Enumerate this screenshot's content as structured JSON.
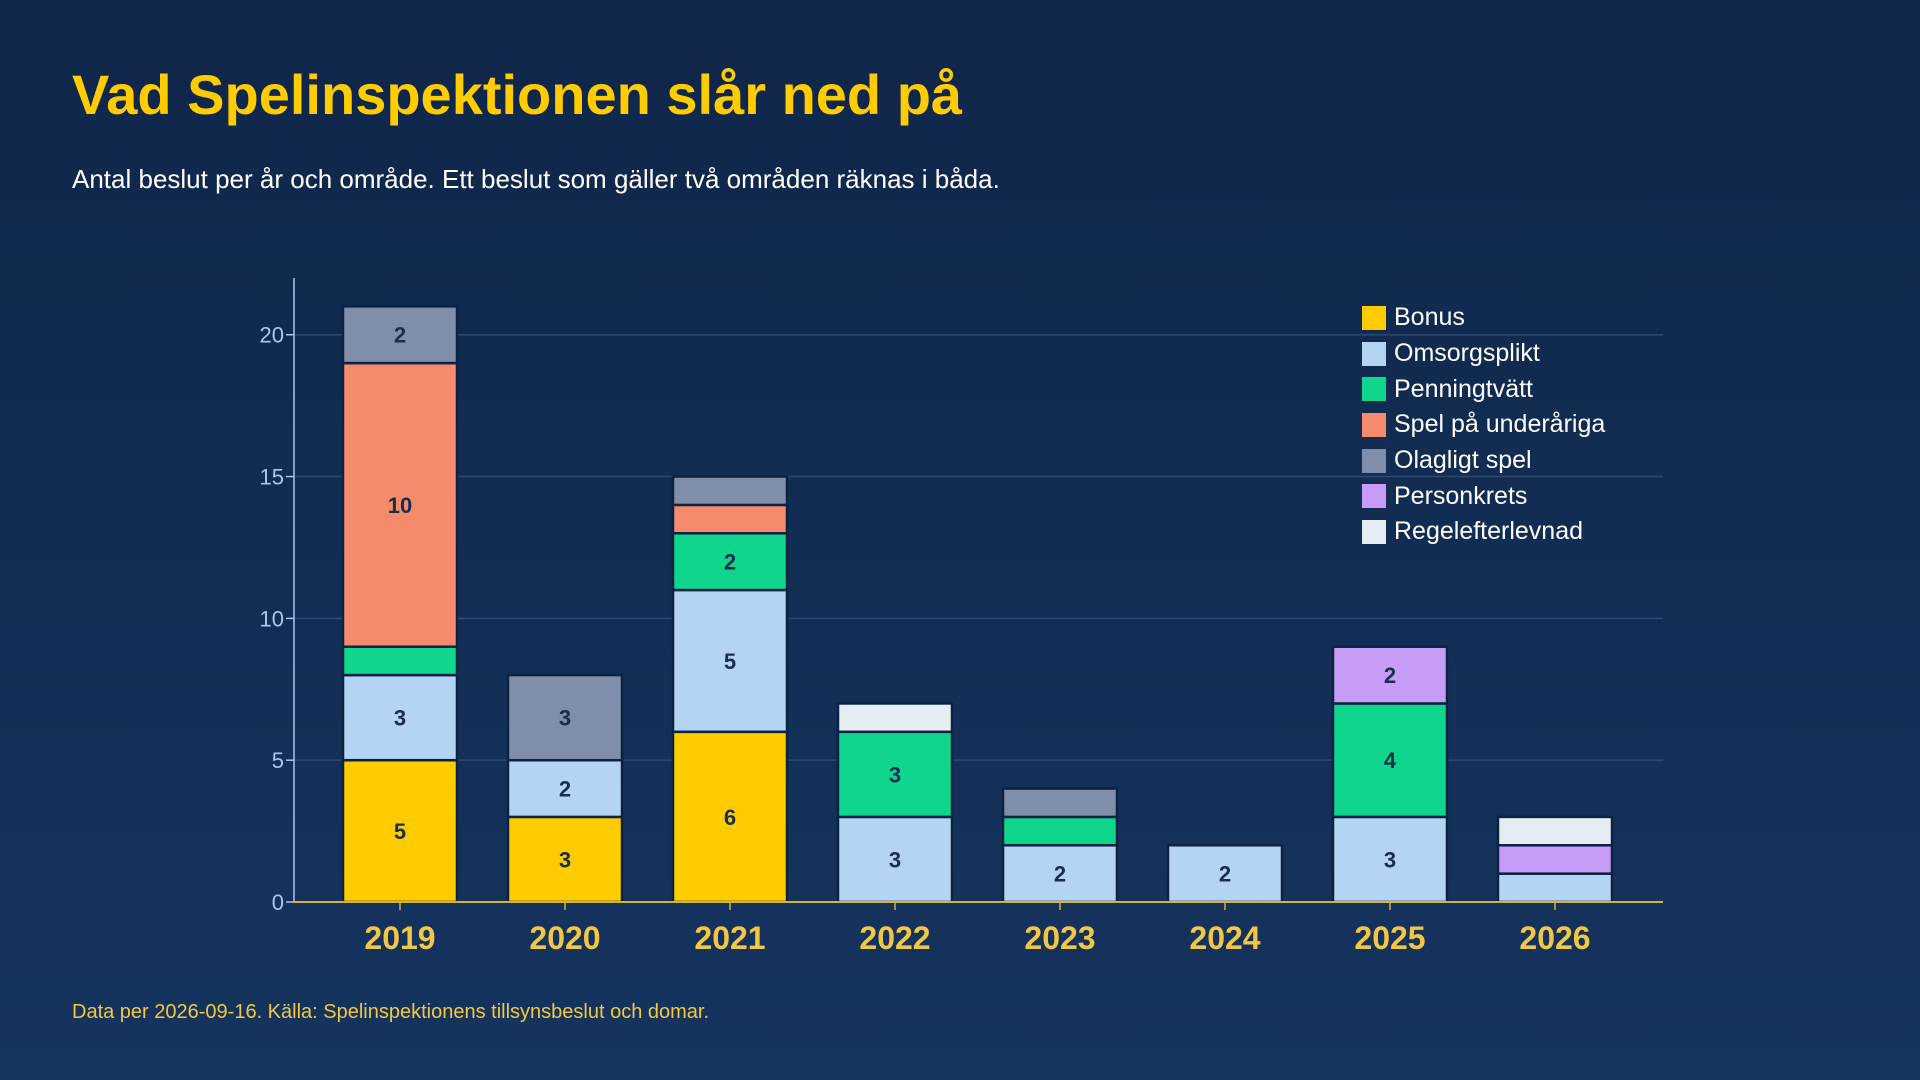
{
  "title": "Vad Spelinspektionen slår ned på",
  "subtitle": "Antal beslut per år och område. Ett beslut som gäller två områden räknas i båda.",
  "footnote": "Data per 2026-09-16. Källa: Spelinspektionens tillsynsbeslut och domar.",
  "colors": {
    "background": "#11294d",
    "title": "#ffcc00",
    "axis_text": "#a9c8ee",
    "category_label": "#f2c744",
    "grid": "#2e4a72",
    "baseline": "#d9b52c",
    "bar_outline": "#0c2243",
    "bar_label": "#1b2d4d"
  },
  "chart_data": {
    "type": "bar",
    "stacked": true,
    "categories": [
      "2019",
      "2020",
      "2021",
      "2022",
      "2023",
      "2024",
      "2025",
      "2026"
    ],
    "yticks": [
      0,
      5,
      10,
      15,
      20
    ],
    "ylim": [
      0,
      22
    ],
    "grid": true,
    "legend_position": "top-right",
    "series": [
      {
        "name": "Bonus",
        "color": "#ffcc00",
        "values": [
          5,
          3,
          6,
          0,
          0,
          0,
          0,
          0
        ]
      },
      {
        "name": "Omsorgsplikt",
        "color": "#b3d4f2",
        "values": [
          3,
          2,
          5,
          3,
          2,
          2,
          3,
          1
        ]
      },
      {
        "name": "Penningtvätt",
        "color": "#0fd68c",
        "values": [
          1,
          0,
          2,
          3,
          1,
          0,
          4,
          0
        ]
      },
      {
        "name": "Spel på underåriga",
        "color": "#f58b6c",
        "values": [
          10,
          0,
          1,
          0,
          0,
          0,
          0,
          0
        ]
      },
      {
        "name": "Olagligt spel",
        "color": "#7f8fab",
        "values": [
          2,
          3,
          1,
          0,
          1,
          0,
          0,
          0
        ]
      },
      {
        "name": "Personkrets",
        "color": "#c69cf7",
        "values": [
          0,
          0,
          0,
          0,
          0,
          0,
          2,
          1
        ]
      },
      {
        "name": "Regelefterlevnad",
        "color": "#e4ecf4",
        "values": [
          0,
          0,
          0,
          1,
          0,
          0,
          0,
          1
        ]
      }
    ]
  }
}
